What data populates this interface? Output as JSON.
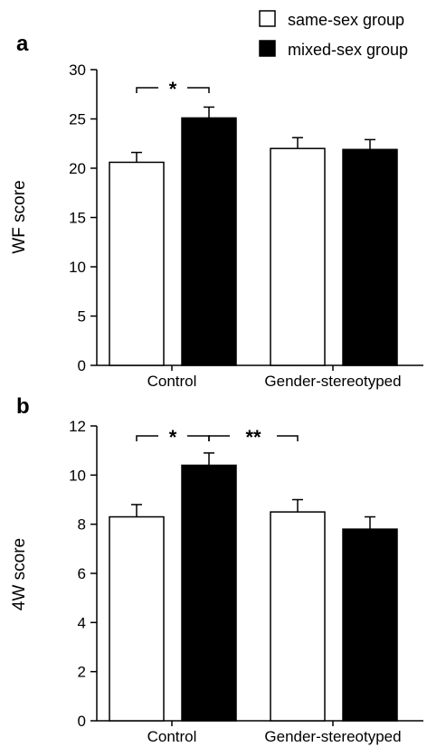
{
  "legend": [
    {
      "label": "same-sex group",
      "fill": "#ffffff"
    },
    {
      "label": "mixed-sex group",
      "fill": "#000000"
    }
  ],
  "chart_data": [
    {
      "type": "bar",
      "panel_label": "a",
      "ylabel": "WF score",
      "xlabel": "",
      "categories": [
        "Control",
        "Gender-stereotyped"
      ],
      "ylim": [
        0,
        30
      ],
      "yticks": [
        0,
        5,
        10,
        15,
        20,
        25,
        30
      ],
      "series": [
        {
          "name": "same-sex group",
          "color": "#ffffff",
          "values": [
            20.6,
            22.0
          ],
          "errors": [
            1.0,
            1.1
          ]
        },
        {
          "name": "mixed-sex group",
          "color": "#000000",
          "values": [
            25.1,
            21.9
          ],
          "errors": [
            1.1,
            1.0
          ]
        }
      ],
      "significance": [
        {
          "label": "*",
          "from": [
            0,
            0
          ],
          "to": [
            0,
            1
          ]
        }
      ],
      "grid": false
    },
    {
      "type": "bar",
      "panel_label": "b",
      "ylabel": "4W score",
      "xlabel": "",
      "categories": [
        "Control",
        "Gender-stereotyped"
      ],
      "ylim": [
        0,
        12
      ],
      "yticks": [
        0,
        2,
        4,
        6,
        8,
        10,
        12
      ],
      "series": [
        {
          "name": "same-sex group",
          "color": "#ffffff",
          "values": [
            8.3,
            8.5
          ],
          "errors": [
            0.5,
            0.5
          ]
        },
        {
          "name": "mixed-sex group",
          "color": "#000000",
          "values": [
            10.4,
            7.8
          ],
          "errors": [
            0.5,
            0.5
          ]
        }
      ],
      "significance": [
        {
          "label": "*",
          "from": [
            0,
            0
          ],
          "to": [
            0,
            1
          ]
        },
        {
          "label": "**",
          "from": [
            0,
            1
          ],
          "to": [
            1,
            0
          ]
        }
      ],
      "grid": false
    }
  ]
}
